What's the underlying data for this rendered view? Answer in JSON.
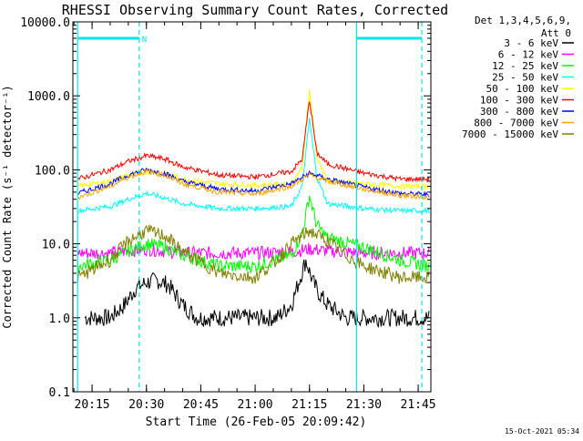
{
  "chart_data": {
    "type": "line",
    "title": "RHESSI Observing Summary Count Rates, Corrected",
    "xlabel": "Start Time (26-Feb-05 20:09:42)",
    "ylabel": "Corrected Count Rate (s⁻¹ detector⁻¹)",
    "ylog": true,
    "ylim": [
      0.1,
      10000
    ],
    "xlim_minutes": [
      20.16,
      21.8
    ],
    "x_unit": "time of day (hh:mm)",
    "x_ticks": [
      "20:15",
      "20:30",
      "20:45",
      "21:00",
      "21:15",
      "21:30",
      "21:45"
    ],
    "y_ticks": [
      "0.1",
      "1.0",
      "10.0",
      "100.0",
      "1000.0",
      "10000.0"
    ],
    "grid": false,
    "legend_position": "top-right, outside plot",
    "legend_header": [
      "Det 1,3,4,5,6,9,",
      "Att 0"
    ],
    "legend_placement": "right",
    "series": [
      {
        "name": "3 - 6 keV",
        "color": "#000000",
        "x": [
          "20:13",
          "20:20",
          "20:24",
          "20:27",
          "20:30",
          "20:33",
          "20:36",
          "20:40",
          "20:44",
          "20:50",
          "21:00",
          "21:06",
          "21:10",
          "21:12",
          "21:14",
          "21:16",
          "21:18",
          "21:20",
          "21:25",
          "21:30",
          "21:40",
          "21:48"
        ],
        "y": [
          1.0,
          1.0,
          1.5,
          2.5,
          3.0,
          3.2,
          2.8,
          1.5,
          1.0,
          1.0,
          1.0,
          1.0,
          1.5,
          3.0,
          6.0,
          3.0,
          2.0,
          1.5,
          1.0,
          1.0,
          1.0,
          1.0
        ]
      },
      {
        "name": "6 - 12 keV",
        "color": "#ff00ff",
        "x": [
          "20:11",
          "20:20",
          "20:25",
          "20:30",
          "20:35",
          "20:40",
          "20:50",
          "21:00",
          "21:10",
          "21:15",
          "21:20",
          "21:30",
          "21:48"
        ],
        "y": [
          7.5,
          7.5,
          8.0,
          8.5,
          8.0,
          7.5,
          7.5,
          7.5,
          7.8,
          8.5,
          8.0,
          7.5,
          7.5
        ]
      },
      {
        "name": "12 - 25 keV",
        "color": "#00ff00",
        "x": [
          "20:11",
          "20:20",
          "20:25",
          "20:30",
          "20:35",
          "20:40",
          "20:50",
          "21:00",
          "21:10",
          "21:13",
          "21:15",
          "21:17",
          "21:20",
          "21:30",
          "21:40",
          "21:48"
        ],
        "y": [
          5.0,
          6.0,
          8.0,
          10.0,
          9.0,
          7.0,
          5.0,
          5.0,
          7.0,
          14.0,
          45.0,
          18.0,
          12.0,
          9.0,
          6.0,
          5.0
        ]
      },
      {
        "name": "25 - 50 keV",
        "color": "#00ffff",
        "x": [
          "20:11",
          "20:20",
          "20:25",
          "20:30",
          "20:35",
          "20:40",
          "20:50",
          "21:00",
          "21:10",
          "21:13",
          "21:15",
          "21:17",
          "21:20",
          "21:30",
          "21:40",
          "21:48"
        ],
        "y": [
          28,
          32,
          40,
          48,
          42,
          35,
          30,
          30,
          32,
          60,
          500,
          80,
          35,
          30,
          28,
          28
        ]
      },
      {
        "name": "50 - 100 keV",
        "color": "#ffff00",
        "x": [
          "20:11",
          "20:20",
          "20:25",
          "20:30",
          "20:35",
          "20:40",
          "20:50",
          "21:00",
          "21:10",
          "21:13",
          "21:15",
          "21:17",
          "21:20",
          "21:30",
          "21:40",
          "21:48"
        ],
        "y": [
          60,
          70,
          85,
          95,
          90,
          75,
          65,
          62,
          65,
          110,
          1200,
          150,
          70,
          65,
          60,
          60
        ]
      },
      {
        "name": "100 - 300 keV",
        "color": "#ff0000",
        "x": [
          "20:11",
          "20:20",
          "20:25",
          "20:30",
          "20:35",
          "20:40",
          "20:50",
          "21:00",
          "21:10",
          "21:13",
          "21:15",
          "21:17",
          "21:20",
          "21:30",
          "21:40",
          "21:48"
        ],
        "y": [
          75,
          100,
          130,
          155,
          140,
          110,
          85,
          80,
          95,
          140,
          900,
          170,
          120,
          90,
          75,
          75
        ]
      },
      {
        "name": "300 - 800 keV",
        "color": "#0000ff",
        "x": [
          "20:11",
          "20:20",
          "20:25",
          "20:30",
          "20:35",
          "20:40",
          "20:50",
          "21:00",
          "21:10",
          "21:15",
          "21:20",
          "21:30",
          "21:40",
          "21:48"
        ],
        "y": [
          48,
          65,
          85,
          100,
          90,
          70,
          55,
          52,
          65,
          90,
          75,
          58,
          48,
          46
        ]
      },
      {
        "name": "800 - 7000 keV",
        "color": "#ffa500",
        "x": [
          "20:11",
          "20:20",
          "20:25",
          "20:30",
          "20:35",
          "20:40",
          "20:50",
          "21:00",
          "21:10",
          "21:15",
          "21:20",
          "21:30",
          "21:40",
          "21:48"
        ],
        "y": [
          42,
          60,
          80,
          95,
          85,
          65,
          50,
          47,
          60,
          85,
          70,
          55,
          45,
          43
        ]
      },
      {
        "name": "7000 - 15000 keV",
        "color": "#808000",
        "x": [
          "20:11",
          "20:20",
          "20:25",
          "20:30",
          "20:35",
          "20:40",
          "20:50",
          "21:00",
          "21:06",
          "21:10",
          "21:15",
          "21:20",
          "21:25",
          "21:30",
          "21:40",
          "21:48"
        ],
        "y": [
          3.5,
          6.0,
          11.0,
          15.0,
          13.0,
          8.0,
          4.0,
          3.5,
          6.0,
          10.0,
          15.0,
          11.0,
          7.0,
          5.0,
          3.5,
          3.5
        ]
      }
    ],
    "markers": {
      "cyan_bars": [
        {
          "from": "20:11",
          "to": "20:28",
          "level": 6000,
          "label": "N"
        },
        {
          "from": "21:28",
          "to": "21:46",
          "level": 6000
        }
      ],
      "vertical_lines_solid": [
        "20:11",
        "21:28"
      ],
      "vertical_lines_dashed": [
        "20:28",
        "21:46"
      ]
    }
  },
  "footer": {
    "timestamp": "15-Oct-2021 05:34"
  }
}
